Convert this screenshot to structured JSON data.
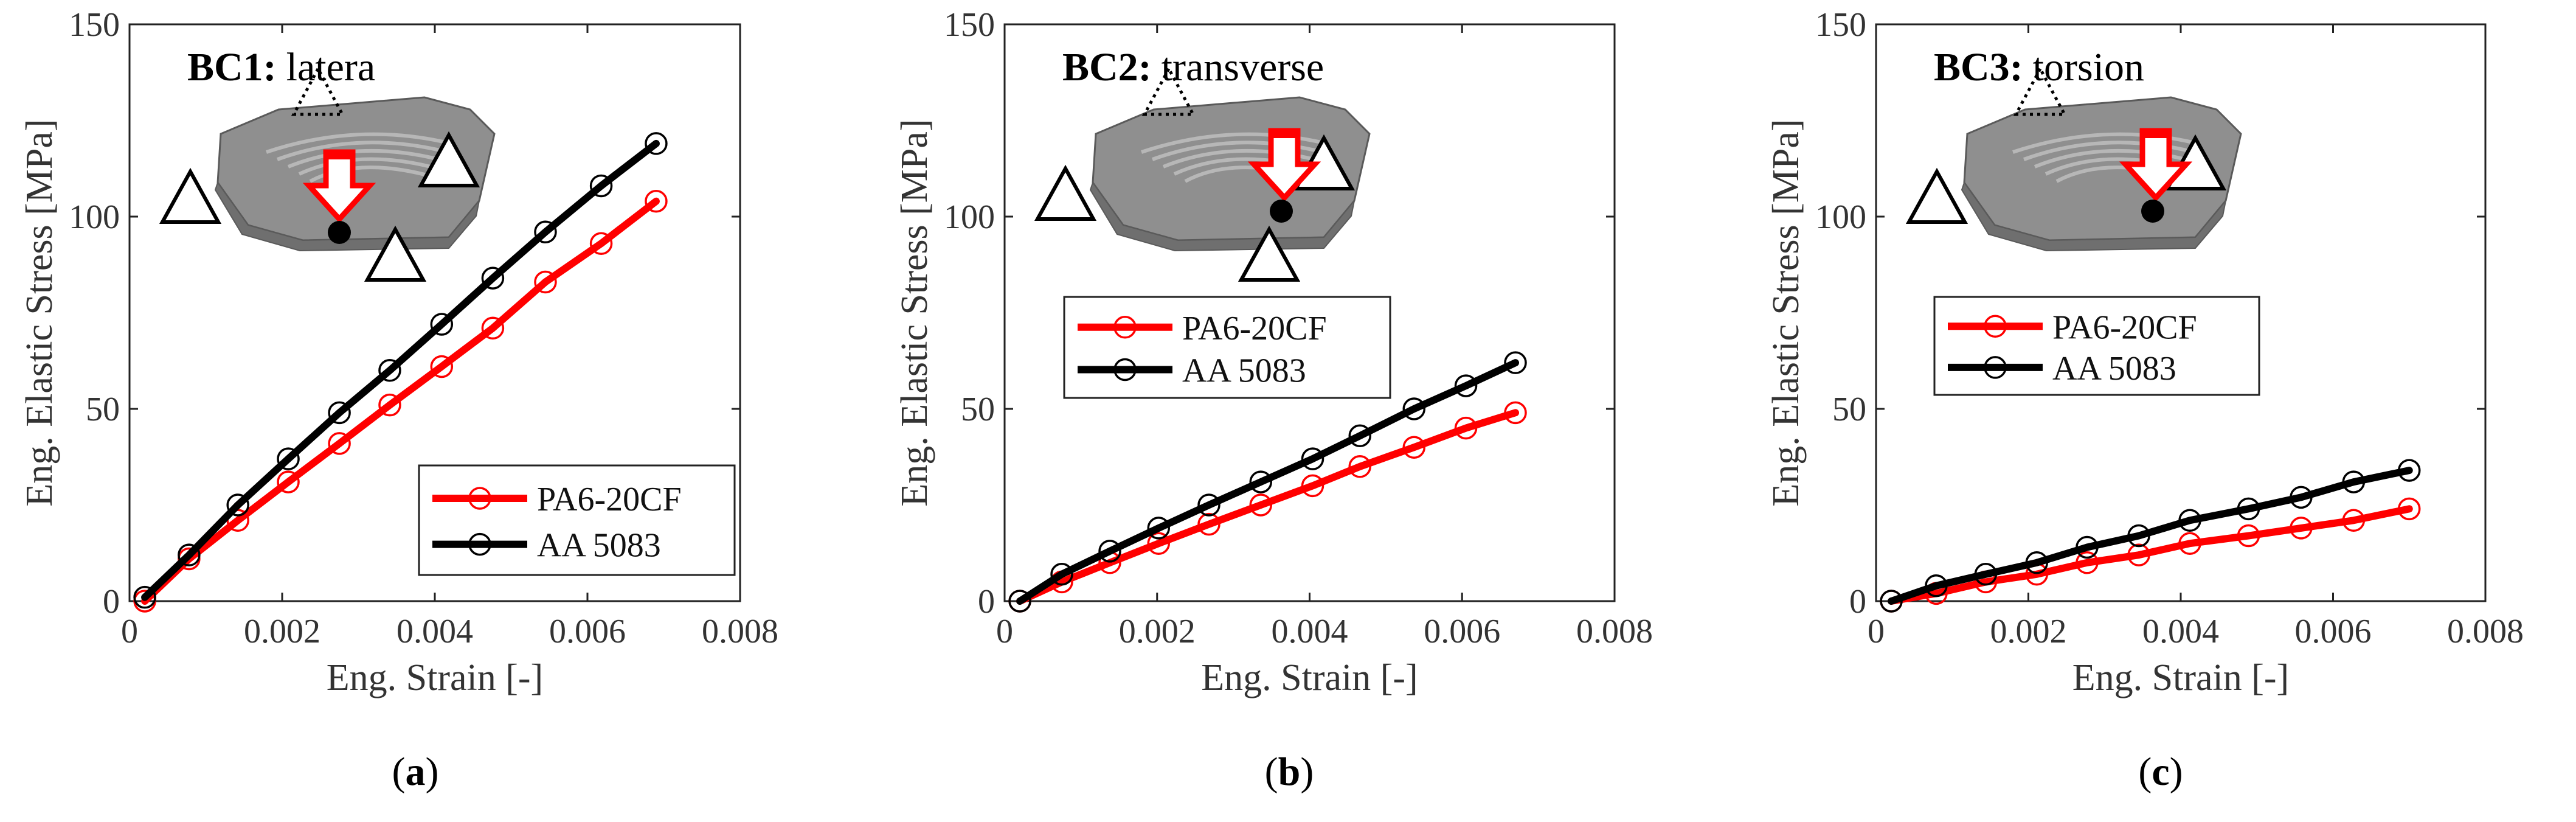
{
  "figure": {
    "panels": [
      {
        "label": "(a)",
        "label_letter": "a",
        "bc_label": "BC1:",
        "bc_desc": "latera",
        "load_style": "lateral"
      },
      {
        "label": "(b)",
        "label_letter": "b",
        "bc_label": "BC2:",
        "bc_desc": "transverse",
        "load_style": "transverse"
      },
      {
        "label": "(c)",
        "label_letter": "c",
        "bc_label": "BC3:",
        "bc_desc": "torsion",
        "load_style": "torsion"
      }
    ]
  },
  "colors": {
    "pa6": "#ff0000",
    "aa": "#000000",
    "part_fill": "#8f8f8f",
    "part_edge": "#5a5a5a",
    "arrow_fill": "#ffffff",
    "arrow_edge": "#ff0000"
  },
  "chart_data": [
    {
      "type": "line",
      "title": "BC1: latera",
      "xlabel": "Eng. Strain [-]",
      "ylabel": "Eng. Elastic Stress [MPa]",
      "xlim": [
        0,
        0.008
      ],
      "ylim": [
        0,
        150
      ],
      "xticks": [
        0,
        0.002,
        0.004,
        0.006,
        0.008
      ],
      "xtick_labels": [
        "0",
        "0.002",
        "0.004",
        "0.006",
        "0.008"
      ],
      "yticks": [
        0,
        50,
        100,
        150
      ],
      "ytick_labels": [
        "0",
        "50",
        "100",
        "150"
      ],
      "legend_position": "lower-right",
      "series": [
        {
          "name": "PA6-20CF",
          "color": "#ff0000",
          "x": [
            0.0002,
            0.00078,
            0.00142,
            0.00208,
            0.00275,
            0.00341,
            0.00409,
            0.00476,
            0.00545,
            0.00618,
            0.0069
          ],
          "y": [
            0,
            11,
            21,
            31,
            41,
            51,
            61,
            71,
            83,
            93,
            104
          ]
        },
        {
          "name": "AA 5083",
          "color": "#000000",
          "x": [
            0.0002,
            0.00078,
            0.00142,
            0.00208,
            0.00275,
            0.00341,
            0.00409,
            0.00476,
            0.00545,
            0.00618,
            0.0069
          ],
          "y": [
            1,
            12,
            25,
            37,
            49,
            60,
            72,
            84,
            96,
            108,
            119
          ]
        }
      ]
    },
    {
      "type": "line",
      "title": "BC2: transverse",
      "xlabel": "Eng. Strain [-]",
      "ylabel": "Eng. Elastic Stress [MPa]",
      "xlim": [
        0,
        0.008
      ],
      "ylim": [
        0,
        150
      ],
      "xticks": [
        0,
        0.002,
        0.004,
        0.006,
        0.008
      ],
      "xtick_labels": [
        "0",
        "0.002",
        "0.004",
        "0.006",
        "0.008"
      ],
      "yticks": [
        0,
        50,
        100,
        150
      ],
      "ytick_labels": [
        "0",
        "50",
        "100",
        "150"
      ],
      "legend_position": "center-left",
      "series": [
        {
          "name": "PA6-20CF",
          "color": "#ff0000",
          "x": [
            0.0002,
            0.00075,
            0.00138,
            0.00202,
            0.00268,
            0.00336,
            0.00404,
            0.00466,
            0.00537,
            0.00605,
            0.0067
          ],
          "y": [
            0,
            5,
            10,
            15,
            20,
            25,
            30,
            35,
            40,
            45,
            49
          ]
        },
        {
          "name": "AA 5083",
          "color": "#000000",
          "x": [
            0.0002,
            0.00075,
            0.00138,
            0.00202,
            0.00268,
            0.00336,
            0.00404,
            0.00466,
            0.00537,
            0.00605,
            0.0067
          ],
          "y": [
            0,
            7,
            13,
            19,
            25,
            31,
            37,
            43,
            50,
            56,
            62
          ]
        }
      ]
    },
    {
      "type": "line",
      "title": "BC3: torsion",
      "xlabel": "Eng. Strain [-]",
      "ylabel": "Eng. Elastic Stress [MPa]",
      "xlim": [
        0,
        0.008
      ],
      "ylim": [
        0,
        150
      ],
      "xticks": [
        0,
        0.002,
        0.004,
        0.006,
        0.008
      ],
      "xtick_labels": [
        "0",
        "0.002",
        "0.004",
        "0.006",
        "0.008"
      ],
      "yticks": [
        0,
        50,
        100,
        150
      ],
      "ytick_labels": [
        "0",
        "50",
        "100",
        "150"
      ],
      "legend_position": "center-left",
      "series": [
        {
          "name": "PA6-20CF",
          "color": "#ff0000",
          "x": [
            0.0002,
            0.00079,
            0.00144,
            0.00211,
            0.00277,
            0.00345,
            0.00412,
            0.00489,
            0.00558,
            0.00627,
            0.007
          ],
          "y": [
            0,
            2,
            5,
            7,
            10,
            12,
            15,
            17,
            19,
            21,
            24
          ]
        },
        {
          "name": "AA 5083",
          "color": "#000000",
          "x": [
            0.0002,
            0.00079,
            0.00144,
            0.00211,
            0.00277,
            0.00345,
            0.00412,
            0.00489,
            0.00558,
            0.00627,
            0.007
          ],
          "y": [
            0,
            4,
            7,
            10,
            14,
            17,
            21,
            24,
            27,
            31,
            34
          ]
        }
      ]
    }
  ]
}
